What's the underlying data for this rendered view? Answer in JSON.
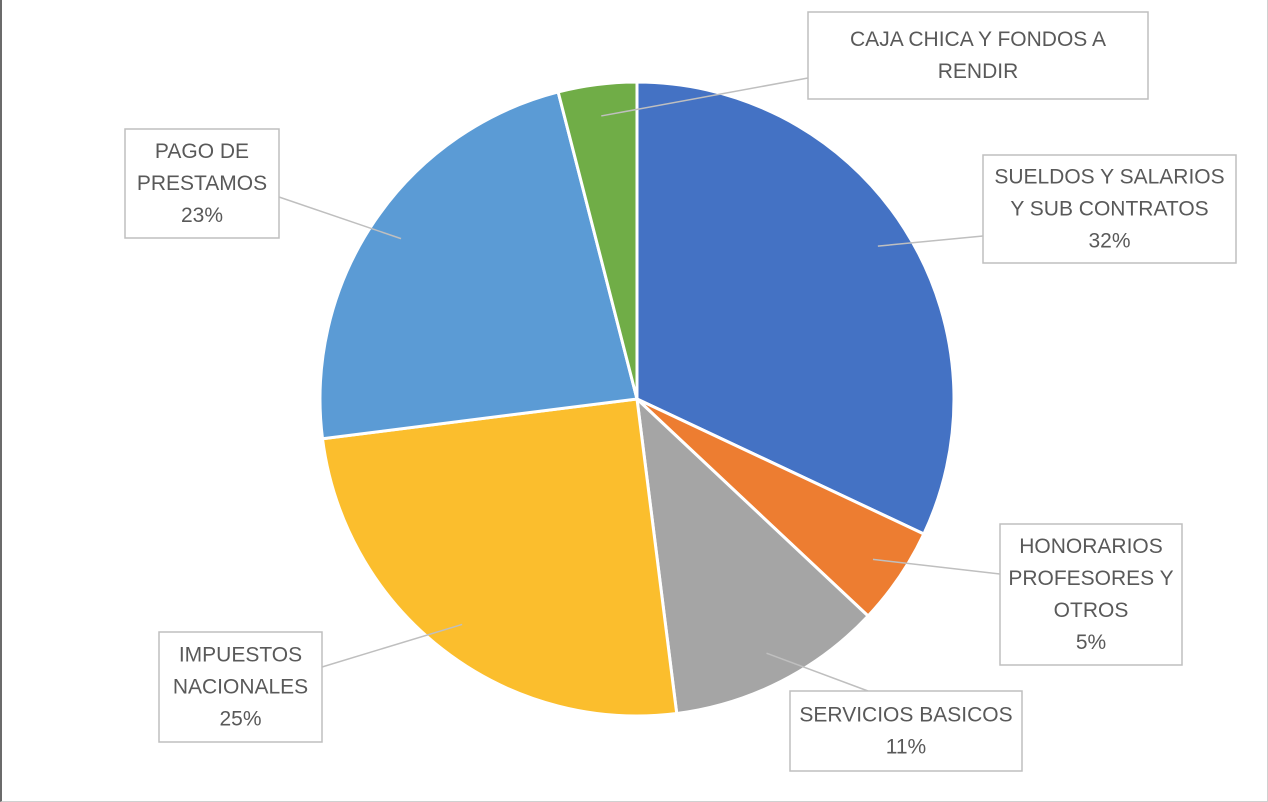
{
  "chart_data": {
    "type": "pie",
    "slices": [
      {
        "name": "SUELDOS Y SALARIOS Y SUB CONTRATOS",
        "name_lines": [
          "SUELDOS Y SALARIOS",
          "Y SUB CONTRATOS"
        ],
        "value": 32,
        "label": "32%",
        "color": "#4472C4"
      },
      {
        "name": "HONORARIOS PROFESORES Y OTROS",
        "name_lines": [
          "HONORARIOS",
          "PROFESORES Y",
          "OTROS"
        ],
        "value": 5,
        "label": "5%",
        "color": "#ED7D31"
      },
      {
        "name": "SERVICIOS BASICOS",
        "name_lines": [
          "SERVICIOS BASICOS"
        ],
        "value": 11,
        "label": "11%",
        "color": "#A5A5A5"
      },
      {
        "name": "IMPUESTOS NACIONALES",
        "name_lines": [
          "IMPUESTOS",
          "NACIONALES"
        ],
        "value": 25,
        "label": "25%",
        "color": "#FBBE2D"
      },
      {
        "name": "PAGO DE PRESTAMOS",
        "name_lines": [
          "PAGO DE",
          "PRESTAMOS"
        ],
        "value": 23,
        "label": "23%",
        "color": "#5B9BD5"
      },
      {
        "name": "CAJA CHICA Y FONDOS A RENDIR",
        "name_lines": [
          "CAJA CHICA Y FONDOS A",
          "RENDIR"
        ],
        "value": 4,
        "label": "",
        "color": "#70AD47"
      }
    ],
    "start_angle_deg": 0,
    "direction": "clockwise",
    "legend": "none",
    "label_style": "callouts with leader lines"
  }
}
